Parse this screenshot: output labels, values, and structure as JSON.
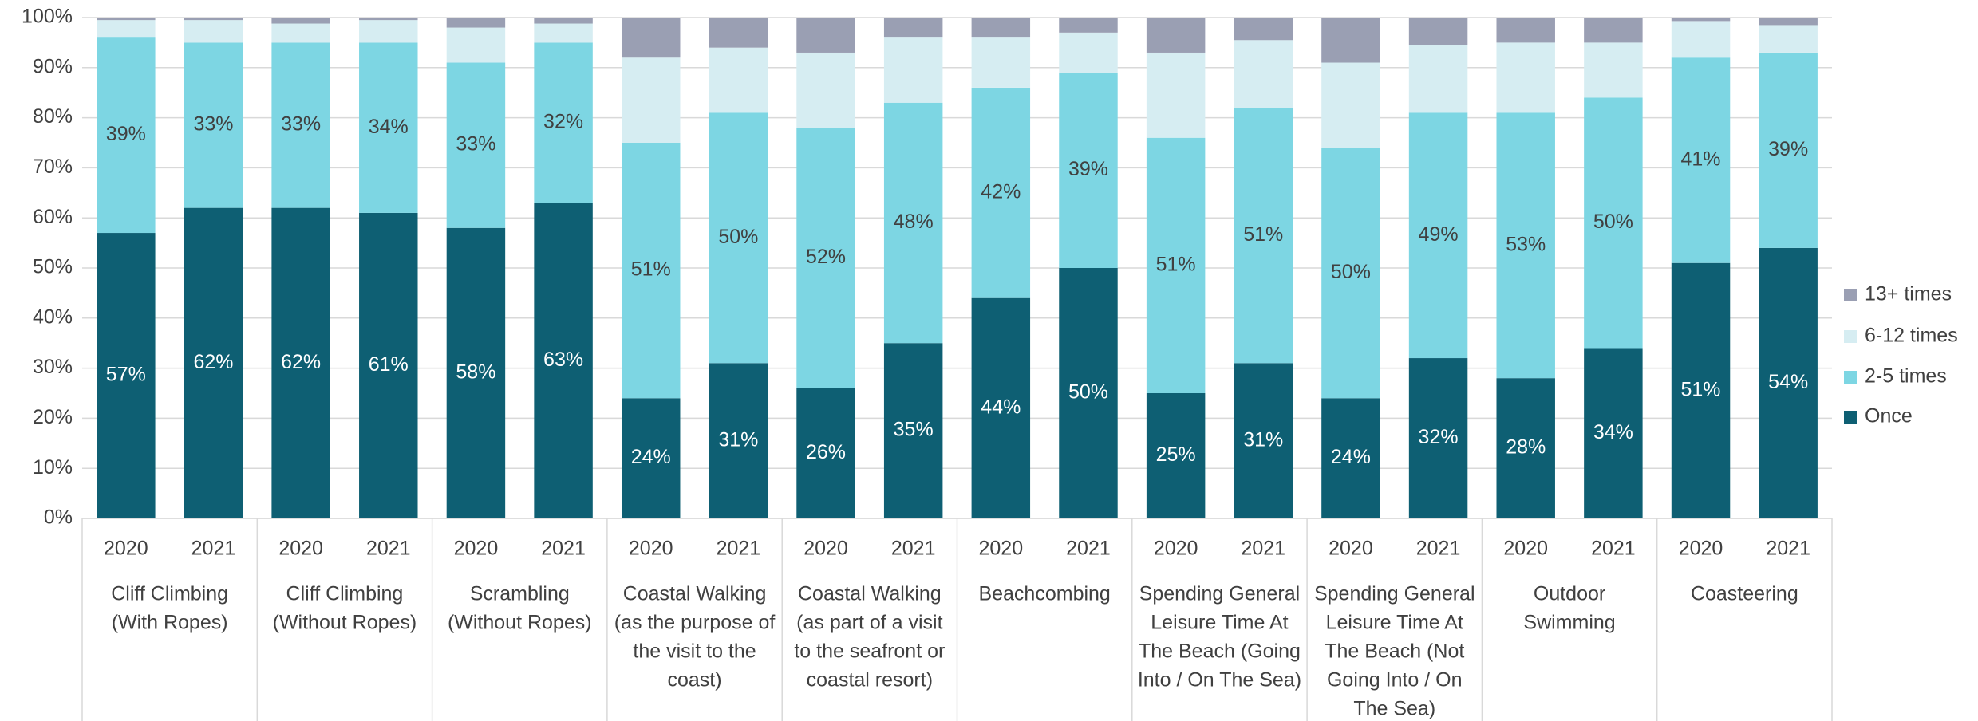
{
  "chart_data": {
    "type": "stacked_bar_100",
    "categories": [
      "2020",
      "2021",
      "2020",
      "2021",
      "2020",
      "2021",
      "2020",
      "2021",
      "2020",
      "2021",
      "2020",
      "2021",
      "2020",
      "2021",
      "2020",
      "2021",
      "2020",
      "2021",
      "2020",
      "2021"
    ],
    "groups": [
      {
        "label": [
          "Cliff Climbing",
          "(With Ropes)"
        ]
      },
      {
        "label": [
          "Cliff Climbing",
          "(Without Ropes)"
        ]
      },
      {
        "label": [
          "Scrambling",
          "(Without Ropes)"
        ]
      },
      {
        "label": [
          "Coastal Walking",
          "(as the purpose of",
          "the visit to the",
          "coast)"
        ]
      },
      {
        "label": [
          "Coastal Walking",
          "(as part of a visit",
          "to the seafront or",
          "coastal resort)"
        ]
      },
      {
        "label": [
          "Beachcombing"
        ]
      },
      {
        "label": [
          "Spending General",
          "Leisure Time At",
          "The Beach (Going",
          "Into / On The Sea)"
        ]
      },
      {
        "label": [
          "Spending General",
          "Leisure Time At",
          "The Beach (Not",
          "Going Into / On",
          "The Sea)"
        ]
      },
      {
        "label": [
          "Outdoor",
          "Swimming"
        ]
      },
      {
        "label": [
          "Coasteering"
        ]
      }
    ],
    "series": [
      {
        "name": "Once",
        "color": "#0e5f73",
        "values": [
          57,
          62,
          62,
          61,
          58,
          63,
          24,
          31,
          26,
          35,
          44,
          50,
          25,
          31,
          24,
          32,
          28,
          34,
          51,
          54
        ],
        "value_labels": [
          "57%",
          "62%",
          "62%",
          "61%",
          "58%",
          "63%",
          "24%",
          "31%",
          "26%",
          "35%",
          "44%",
          "50%",
          "25%",
          "31%",
          "24%",
          "32%",
          "28%",
          "34%",
          "51%",
          "54%"
        ]
      },
      {
        "name": "2-5 times",
        "color": "#7dd6e3",
        "values": [
          39,
          33,
          33,
          34,
          33,
          32,
          51,
          50,
          52,
          48,
          42,
          39,
          51,
          51,
          50,
          49,
          53,
          50,
          41,
          39
        ],
        "value_labels": [
          "39%",
          "33%",
          "33%",
          "34%",
          "33%",
          "32%",
          "51%",
          "50%",
          "52%",
          "48%",
          "42%",
          "39%",
          "51%",
          "51%",
          "50%",
          "49%",
          "53%",
          "50%",
          "41%",
          "39%"
        ]
      },
      {
        "name": "6-12 times",
        "color": "#d6edf2",
        "values": [
          3.5,
          4.5,
          3.8,
          4.5,
          7,
          3.8,
          17,
          13,
          15,
          13,
          10,
          8,
          17,
          13.5,
          17,
          13.5,
          14,
          11,
          7.3,
          5.5
        ]
      },
      {
        "name": "13+ times",
        "color": "#9a9fb3",
        "values": [
          0.5,
          0.5,
          1.2,
          0.5,
          2,
          1.2,
          8,
          6,
          7,
          4,
          4,
          3,
          7,
          4.5,
          9,
          5.5,
          5,
          5,
          0.7,
          1.5
        ]
      }
    ],
    "ylim": [
      0,
      100
    ],
    "yticks": [
      {
        "value": 0,
        "label": "0%"
      },
      {
        "value": 10,
        "label": "10%"
      },
      {
        "value": 20,
        "label": "20%"
      },
      {
        "value": 30,
        "label": "30%"
      },
      {
        "value": 40,
        "label": "40%"
      },
      {
        "value": 50,
        "label": "50%"
      },
      {
        "value": 60,
        "label": "60%"
      },
      {
        "value": 70,
        "label": "70%"
      },
      {
        "value": 80,
        "label": "80%"
      },
      {
        "value": 90,
        "label": "90%"
      },
      {
        "value": 100,
        "label": "100%"
      }
    ],
    "grid": true,
    "legend": "right"
  }
}
